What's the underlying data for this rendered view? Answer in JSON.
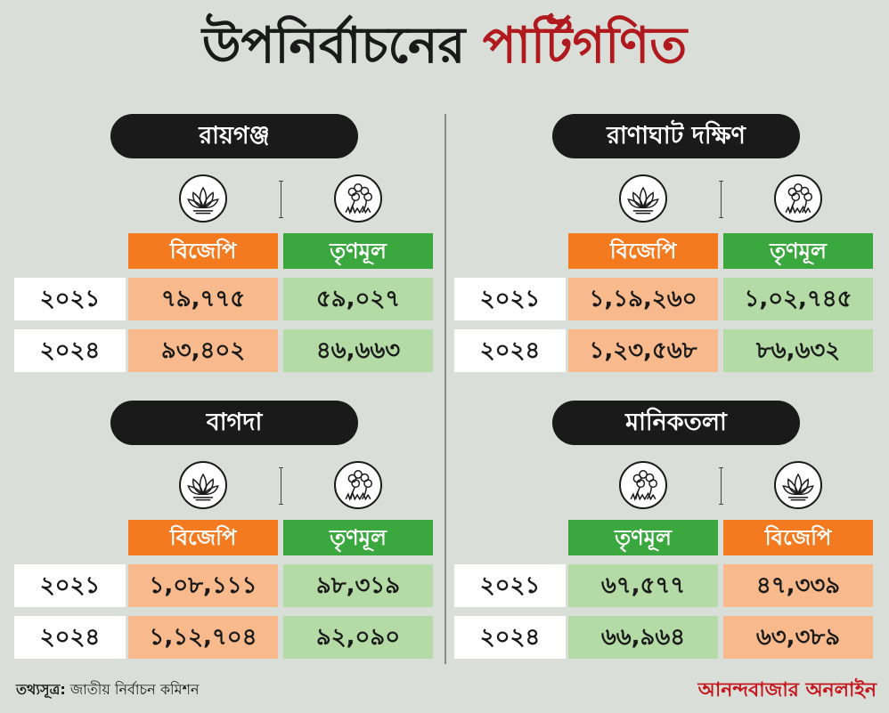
{
  "title": {
    "part1": "উপনির্বাচনের",
    "part2": "পার্টিগণিত"
  },
  "chart_data": [
    {
      "type": "table",
      "title": "রায়গঞ্জ",
      "columns": [
        {
          "party": "bjp",
          "label": "বিজেপি",
          "symbol": "lotus-icon"
        },
        {
          "party": "tmc",
          "label": "তৃণমূল",
          "symbol": "flower-grass-icon"
        }
      ],
      "rows": [
        {
          "year": "২০২১",
          "values": [
            "৭৯,৭৭৫",
            "৫৯,০২৭"
          ]
        },
        {
          "year": "২০২৪",
          "values": [
            "৯৩,৪০২",
            "৪৬,৬৬৩"
          ]
        }
      ]
    },
    {
      "type": "table",
      "title": "রাণাঘাট দক্ষিণ",
      "columns": [
        {
          "party": "bjp",
          "label": "বিজেপি",
          "symbol": "lotus-icon"
        },
        {
          "party": "tmc",
          "label": "তৃণমূল",
          "symbol": "flower-grass-icon"
        }
      ],
      "rows": [
        {
          "year": "২০২১",
          "values": [
            "১,১৯,২৬০",
            "১,০২,৭৪৫"
          ]
        },
        {
          "year": "২০২৪",
          "values": [
            "১,২৩,৫৬৮",
            "৮৬,৬৩২"
          ]
        }
      ]
    },
    {
      "type": "table",
      "title": "বাগদা",
      "columns": [
        {
          "party": "bjp",
          "label": "বিজেপি",
          "symbol": "lotus-icon"
        },
        {
          "party": "tmc",
          "label": "তৃণমূল",
          "symbol": "flower-grass-icon"
        }
      ],
      "rows": [
        {
          "year": "২০২১",
          "values": [
            "১,০৮,১১১",
            "৯৮,৩১৯"
          ]
        },
        {
          "year": "২০২৪",
          "values": [
            "১,১২,৭০৪",
            "৯২,০৯০"
          ]
        }
      ]
    },
    {
      "type": "table",
      "title": "মানিকতলা",
      "columns": [
        {
          "party": "tmc",
          "label": "তৃণমূল",
          "symbol": "flower-grass-icon"
        },
        {
          "party": "bjp",
          "label": "বিজেপি",
          "symbol": "lotus-icon"
        }
      ],
      "rows": [
        {
          "year": "২০২১",
          "values": [
            "৬৭,৫৭৭",
            "৪৭,৩৩৯"
          ]
        },
        {
          "year": "২০২৪",
          "values": [
            "৬৬,৯৬৪",
            "৬৩,৩৮৯"
          ]
        }
      ]
    }
  ],
  "colors": {
    "bjp_header": "#f47a20",
    "bjp_cell": "#f8b98c",
    "tmc_header": "#3aa83f",
    "tmc_cell": "#b4daa6",
    "title_accent": "#b0191e",
    "brand": "#c4161c"
  },
  "footer": {
    "source_label": "তথ্যসূত্র:",
    "source_text": "জাতীয় নির্বাচন কমিশন",
    "brand": "আনন্দবাজার অনলাইন"
  }
}
